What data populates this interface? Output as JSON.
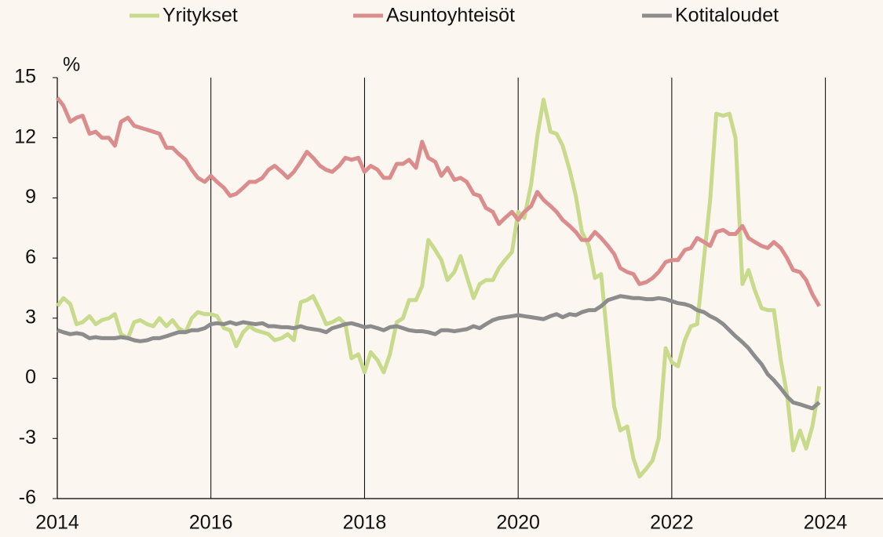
{
  "chart_data": {
    "type": "line",
    "y_unit": "%",
    "x": [
      2014,
      2014.08,
      2014.17,
      2014.25,
      2014.33,
      2014.42,
      2014.5,
      2014.58,
      2014.67,
      2014.75,
      2014.83,
      2014.92,
      2015,
      2015.08,
      2015.17,
      2015.25,
      2015.33,
      2015.42,
      2015.5,
      2015.58,
      2015.67,
      2015.75,
      2015.83,
      2015.92,
      2016,
      2016.08,
      2016.17,
      2016.25,
      2016.33,
      2016.42,
      2016.5,
      2016.58,
      2016.67,
      2016.75,
      2016.83,
      2016.92,
      2017,
      2017.08,
      2017.17,
      2017.25,
      2017.33,
      2017.42,
      2017.5,
      2017.58,
      2017.67,
      2017.75,
      2017.83,
      2017.92,
      2018,
      2018.08,
      2018.17,
      2018.25,
      2018.33,
      2018.42,
      2018.5,
      2018.58,
      2018.67,
      2018.75,
      2018.83,
      2018.92,
      2019,
      2019.08,
      2019.17,
      2019.25,
      2019.33,
      2019.42,
      2019.5,
      2019.58,
      2019.67,
      2019.75,
      2019.83,
      2019.92,
      2020,
      2020.08,
      2020.17,
      2020.25,
      2020.33,
      2020.42,
      2020.5,
      2020.58,
      2020.67,
      2020.75,
      2020.83,
      2020.92,
      2021,
      2021.08,
      2021.17,
      2021.25,
      2021.33,
      2021.42,
      2021.5,
      2021.58,
      2021.67,
      2021.75,
      2021.83,
      2021.92,
      2022,
      2022.08,
      2022.17,
      2022.25,
      2022.33,
      2022.42,
      2022.5,
      2022.58,
      2022.67,
      2022.75,
      2022.83,
      2022.92,
      2023,
      2023.08,
      2023.17,
      2023.25,
      2023.33,
      2023.42,
      2023.5,
      2023.58,
      2023.67,
      2023.75,
      2023.83,
      2023.92
    ],
    "series": [
      {
        "name": "Yritykset",
        "color": "#c8da8c",
        "values": [
          3.6,
          4.0,
          3.7,
          2.7,
          2.8,
          3.1,
          2.7,
          2.9,
          3.0,
          3.2,
          2.2,
          2.0,
          2.8,
          2.9,
          2.7,
          2.6,
          3.0,
          2.6,
          2.9,
          2.5,
          2.3,
          3.0,
          3.3,
          3.2,
          3.2,
          3.1,
          2.5,
          2.4,
          1.6,
          2.3,
          2.6,
          2.4,
          2.3,
          2.2,
          1.9,
          2.0,
          2.2,
          1.9,
          3.8,
          3.9,
          4.1,
          3.4,
          2.7,
          2.8,
          3.0,
          2.7,
          1.0,
          1.2,
          0.3,
          1.3,
          0.9,
          0.3,
          1.2,
          2.8,
          3.0,
          3.9,
          3.9,
          4.6,
          6.9,
          6.4,
          5.9,
          4.9,
          5.3,
          6.1,
          5.1,
          4.0,
          4.7,
          4.9,
          4.9,
          5.5,
          5.9,
          6.3,
          8.3,
          8.0,
          9.7,
          12.1,
          13.9,
          12.3,
          12.2,
          11.6,
          10.4,
          9.1,
          7.3,
          6.6,
          5.0,
          5.2,
          1.6,
          -1.4,
          -2.6,
          -2.4,
          -4.0,
          -4.9,
          -4.5,
          -4.1,
          -3.0,
          1.5,
          0.8,
          0.6,
          1.9,
          2.6,
          2.7,
          6.0,
          8.9,
          13.2,
          13.1,
          13.2,
          12.0,
          4.7,
          5.4,
          4.4,
          3.5,
          3.4,
          3.4,
          0.9,
          -0.8,
          -3.6,
          -2.6,
          -3.5,
          -2.4,
          -0.4
        ]
      },
      {
        "name": "Asuntoyhteisöt",
        "color": "#db8c8c",
        "values": [
          14.0,
          13.6,
          12.8,
          13.0,
          13.1,
          12.2,
          12.3,
          12.0,
          12.0,
          11.6,
          12.8,
          13.0,
          12.6,
          12.5,
          12.4,
          12.3,
          12.2,
          11.5,
          11.5,
          11.2,
          10.9,
          10.4,
          10.0,
          9.8,
          10.1,
          9.8,
          9.5,
          9.1,
          9.2,
          9.5,
          9.8,
          9.8,
          10.0,
          10.4,
          10.6,
          10.3,
          10.0,
          10.3,
          10.8,
          11.3,
          11.0,
          10.6,
          10.4,
          10.3,
          10.6,
          11.0,
          10.9,
          11.0,
          10.3,
          10.6,
          10.4,
          10.0,
          10.0,
          10.7,
          10.7,
          10.9,
          10.5,
          11.8,
          11.0,
          10.8,
          10.1,
          10.5,
          9.9,
          10.0,
          9.8,
          9.2,
          9.1,
          8.5,
          8.3,
          7.7,
          8.0,
          8.3,
          7.9,
          8.3,
          8.6,
          9.3,
          8.9,
          8.6,
          8.3,
          7.9,
          7.6,
          7.3,
          6.9,
          6.9,
          7.3,
          7.0,
          6.6,
          6.2,
          5.5,
          5.3,
          5.2,
          4.7,
          4.8,
          5.0,
          5.3,
          5.8,
          5.9,
          5.9,
          6.4,
          6.5,
          7.0,
          6.8,
          6.6,
          7.3,
          7.4,
          7.2,
          7.2,
          7.6,
          7.0,
          6.8,
          6.6,
          6.5,
          6.8,
          6.5,
          6.0,
          5.4,
          5.3,
          4.9,
          4.2,
          3.6
        ]
      },
      {
        "name": "Kotitaloudet",
        "color": "#8c8c8c",
        "values": [
          2.4,
          2.3,
          2.2,
          2.25,
          2.2,
          2.0,
          2.05,
          2.0,
          2.0,
          2.0,
          2.05,
          2.0,
          1.9,
          1.85,
          1.9,
          2.0,
          2.0,
          2.1,
          2.2,
          2.3,
          2.3,
          2.4,
          2.4,
          2.5,
          2.7,
          2.75,
          2.7,
          2.8,
          2.7,
          2.8,
          2.75,
          2.7,
          2.75,
          2.6,
          2.6,
          2.55,
          2.55,
          2.5,
          2.6,
          2.5,
          2.45,
          2.4,
          2.3,
          2.5,
          2.6,
          2.7,
          2.75,
          2.65,
          2.55,
          2.6,
          2.5,
          2.4,
          2.55,
          2.6,
          2.5,
          2.4,
          2.35,
          2.35,
          2.3,
          2.2,
          2.4,
          2.4,
          2.35,
          2.4,
          2.45,
          2.6,
          2.5,
          2.7,
          2.9,
          3.0,
          3.05,
          3.1,
          3.15,
          3.1,
          3.05,
          3.0,
          2.95,
          3.1,
          3.2,
          3.05,
          3.2,
          3.15,
          3.3,
          3.4,
          3.4,
          3.6,
          3.9,
          4.0,
          4.1,
          4.05,
          4.0,
          4.0,
          3.95,
          3.95,
          4.0,
          3.95,
          3.85,
          3.75,
          3.7,
          3.6,
          3.4,
          3.3,
          3.1,
          2.95,
          2.7,
          2.4,
          2.1,
          1.8,
          1.5,
          1.1,
          0.7,
          0.2,
          -0.1,
          -0.5,
          -0.9,
          -1.2,
          -1.3,
          -1.4,
          -1.5,
          -1.2
        ]
      }
    ],
    "xlim": [
      2014,
      2024.75
    ],
    "xticks": [
      2014,
      2016,
      2018,
      2020,
      2022,
      2024
    ],
    "ylim": [
      -6,
      15
    ],
    "yticks": [
      -6,
      -3,
      0,
      3,
      6,
      9,
      12,
      15
    ],
    "grid": "x",
    "legend": "top"
  }
}
